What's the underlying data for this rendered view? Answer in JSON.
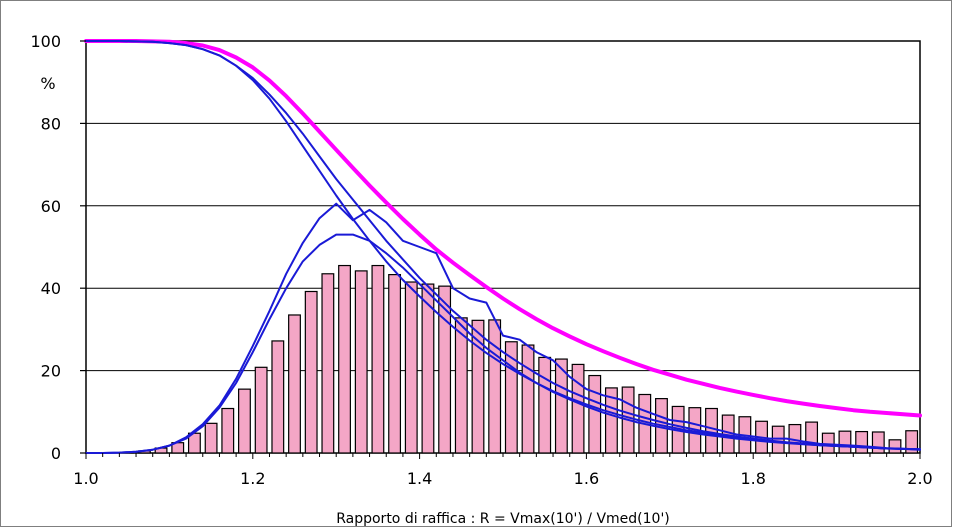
{
  "chart_data": {
    "type": "bar",
    "title": "",
    "xlabel": "Rapporto di raffica : R = Vmax(10') / Vmed(10')",
    "ylabel": "%",
    "xlim": [
      1.0,
      2.0
    ],
    "ylim": [
      0,
      100
    ],
    "x_ticks": [
      "1.0",
      "1.2",
      "1.4",
      "1.6",
      "1.8",
      "2.0"
    ],
    "y_ticks": [
      "0",
      "20",
      "40",
      "60",
      "80",
      "100"
    ],
    "grid": "horizontal",
    "legend": "none",
    "bars": {
      "color": "#f4a6c6",
      "edge_color": "#000000",
      "x": [
        1.0,
        1.02,
        1.04,
        1.06,
        1.08,
        1.1,
        1.12,
        1.14,
        1.16,
        1.18,
        1.2,
        1.22,
        1.24,
        1.26,
        1.28,
        1.3,
        1.32,
        1.34,
        1.36,
        1.38,
        1.4,
        1.42,
        1.44,
        1.46,
        1.48,
        1.5,
        1.52,
        1.54,
        1.56,
        1.58,
        1.6,
        1.62,
        1.64,
        1.66,
        1.68,
        1.7,
        1.72,
        1.74,
        1.76,
        1.78,
        1.8,
        1.82,
        1.84,
        1.86,
        1.88,
        1.9,
        1.92,
        1.94,
        1.96,
        1.98
      ],
      "values": [
        0,
        0,
        0.2,
        0.5,
        1.2,
        2.5,
        4.8,
        7.2,
        10.8,
        15.5,
        20.8,
        27.2,
        33.5,
        39.2,
        43.5,
        45.5,
        44.2,
        45.5,
        43.3,
        41.5,
        41.0,
        40.5,
        32.8,
        32.2,
        32.3,
        27.0,
        26.2,
        23.2,
        22.8,
        21.5,
        18.8,
        15.8,
        16.0,
        14.2,
        13.2,
        11.3,
        11.0,
        10.8,
        9.2,
        8.8,
        7.7,
        6.5,
        6.9,
        7.5,
        4.8,
        5.3,
        5.2,
        5.1,
        3.2,
        5.4
      ]
    },
    "series": [
      {
        "color": "#ff00ff",
        "x": [
          1.0,
          1.02,
          1.04,
          1.06,
          1.08,
          1.1,
          1.12,
          1.14,
          1.16,
          1.18,
          1.2,
          1.22,
          1.24,
          1.26,
          1.28,
          1.3,
          1.32,
          1.34,
          1.36,
          1.38,
          1.4,
          1.42,
          1.44,
          1.46,
          1.48,
          1.5,
          1.52,
          1.54,
          1.56,
          1.58,
          1.6,
          1.62,
          1.64,
          1.66,
          1.68,
          1.7,
          1.72,
          1.74,
          1.76,
          1.78,
          1.8,
          1.82,
          1.84,
          1.86,
          1.88,
          1.9,
          1.92,
          1.94,
          1.96,
          1.98,
          2.0
        ],
        "values": [
          100,
          100,
          100,
          100,
          99.9,
          99.8,
          99.5,
          98.9,
          97.8,
          96.0,
          93.6,
          90.4,
          86.6,
          82.4,
          78.0,
          73.6,
          69.2,
          64.9,
          60.8,
          56.8,
          53.0,
          49.4,
          46.2,
          43.2,
          40.3,
          37.5,
          34.9,
          32.5,
          30.3,
          28.3,
          26.4,
          24.7,
          23.1,
          21.6,
          20.2,
          19.0,
          17.8,
          16.8,
          15.8,
          14.9,
          14.1,
          13.3,
          12.6,
          12.0,
          11.4,
          10.9,
          10.4,
          10.0,
          9.7,
          9.4,
          9.1
        ]
      },
      {
        "color": "#1a1ad6",
        "x": [
          1.0,
          1.02,
          1.04,
          1.06,
          1.08,
          1.1,
          1.12,
          1.14,
          1.16,
          1.18,
          1.2,
          1.22,
          1.24,
          1.26,
          1.28,
          1.3,
          1.32,
          1.34,
          1.36,
          1.38,
          1.4,
          1.42,
          1.44,
          1.46,
          1.48,
          1.5,
          1.52,
          1.54,
          1.56,
          1.58,
          1.6,
          1.62,
          1.64,
          1.66,
          1.68,
          1.7,
          1.72,
          1.74,
          1.76,
          1.78,
          1.8,
          1.82,
          1.84,
          1.86,
          1.88,
          1.9,
          1.92,
          1.94,
          1.96,
          1.98,
          2.0
        ],
        "values": [
          100,
          100,
          100,
          99.9,
          99.8,
          99.5,
          99.0,
          98.0,
          96.5,
          94.0,
          90.5,
          86.0,
          80.5,
          74.5,
          68.5,
          62.5,
          56.8,
          51.5,
          46.5,
          42.0,
          38.0,
          34.2,
          30.6,
          27.3,
          24.3,
          21.6,
          19.2,
          17.0,
          15.0,
          13.3,
          11.8,
          10.4,
          9.2,
          8.1,
          7.1,
          6.3,
          5.5,
          4.9,
          4.3,
          3.8,
          3.3,
          2.9,
          2.5,
          2.2,
          1.9,
          1.7,
          1.5,
          1.3,
          1.1,
          1.0,
          0.9
        ]
      },
      {
        "color": "#1a1ad6",
        "x": [
          1.0,
          1.02,
          1.04,
          1.06,
          1.08,
          1.1,
          1.12,
          1.14,
          1.16,
          1.18,
          1.2,
          1.22,
          1.24,
          1.26,
          1.28,
          1.3,
          1.32,
          1.34,
          1.36,
          1.38,
          1.4,
          1.42,
          1.44,
          1.46,
          1.48,
          1.5,
          1.52,
          1.54,
          1.56,
          1.58,
          1.6,
          1.62,
          1.64,
          1.66,
          1.68,
          1.7,
          1.72,
          1.74,
          1.76,
          1.78,
          1.8,
          1.82,
          1.84,
          1.86,
          1.88,
          1.9,
          1.92,
          1.94,
          1.96,
          1.98,
          2.0
        ],
        "values": [
          100,
          100,
          100,
          99.9,
          99.8,
          99.5,
          99.0,
          98.0,
          96.5,
          94.0,
          91.0,
          87.0,
          82.5,
          77.5,
          72.0,
          66.5,
          61.5,
          56.5,
          51.5,
          47.0,
          42.5,
          38.5,
          34.5,
          31.0,
          27.5,
          24.5,
          21.8,
          19.3,
          17.0,
          15.0,
          13.3,
          11.7,
          10.3,
          9.1,
          8.0,
          7.0,
          6.1,
          5.3,
          4.6,
          4.0,
          3.5,
          3.0,
          2.6,
          2.3,
          2.0,
          1.7,
          1.5,
          1.3,
          1.1,
          1.0,
          0.9
        ]
      },
      {
        "color": "#1a1ad6",
        "x": [
          1.0,
          1.02,
          1.04,
          1.06,
          1.08,
          1.1,
          1.12,
          1.14,
          1.16,
          1.18,
          1.2,
          1.22,
          1.24,
          1.26,
          1.28,
          1.3,
          1.32,
          1.34,
          1.36,
          1.38,
          1.4,
          1.42,
          1.44,
          1.46,
          1.48,
          1.5,
          1.52,
          1.54,
          1.56,
          1.58,
          1.6,
          1.62,
          1.64,
          1.66,
          1.68,
          1.7,
          1.72,
          1.74,
          1.76,
          1.78,
          1.8,
          1.82,
          1.84,
          1.86,
          1.88,
          1.9,
          1.92,
          1.94,
          1.96,
          1.98,
          2.0
        ],
        "values": [
          0,
          0,
          0.1,
          0.3,
          0.8,
          1.8,
          3.8,
          7.0,
          11.5,
          18.0,
          26.0,
          34.5,
          43.5,
          51.0,
          57.0,
          60.5,
          56.5,
          59.0,
          56.0,
          51.5,
          50.0,
          48.5,
          40.0,
          37.5,
          36.5,
          28.5,
          27.5,
          24.5,
          22.5,
          18.5,
          15.5,
          14.0,
          13.0,
          11.0,
          9.5,
          8.0,
          7.5,
          6.5,
          5.5,
          4.5,
          4.0,
          3.5,
          3.5,
          2.8,
          2.2,
          2.0,
          1.8,
          1.5,
          1.2,
          1.0,
          0.8
        ]
      },
      {
        "color": "#1a1ad6",
        "x": [
          1.0,
          1.02,
          1.04,
          1.06,
          1.08,
          1.1,
          1.12,
          1.14,
          1.16,
          1.18,
          1.2,
          1.22,
          1.24,
          1.26,
          1.28,
          1.3,
          1.32,
          1.34,
          1.36,
          1.38,
          1.4,
          1.42,
          1.44,
          1.46,
          1.48,
          1.5,
          1.52,
          1.54,
          1.56,
          1.58,
          1.6,
          1.62,
          1.64,
          1.66,
          1.68,
          1.7,
          1.72,
          1.74,
          1.76,
          1.78,
          1.8,
          1.82,
          1.84,
          1.86,
          1.88,
          1.9,
          1.92,
          1.94,
          1.96,
          1.98,
          2.0
        ],
        "values": [
          0,
          0,
          0.1,
          0.3,
          0.8,
          1.8,
          3.5,
          6.5,
          11.0,
          17.0,
          24.5,
          32.5,
          40.0,
          46.5,
          50.5,
          53.0,
          53.0,
          51.5,
          48.5,
          45.0,
          41.0,
          37.0,
          33.0,
          29.0,
          25.5,
          22.5,
          19.5,
          17.0,
          14.8,
          13.0,
          11.3,
          9.8,
          8.6,
          7.5,
          6.6,
          5.8,
          5.1,
          4.5,
          4.0,
          3.5,
          3.1,
          2.7,
          2.4,
          2.1,
          1.9,
          1.7,
          1.5,
          1.3,
          1.1,
          1.0,
          0.9
        ]
      }
    ]
  }
}
